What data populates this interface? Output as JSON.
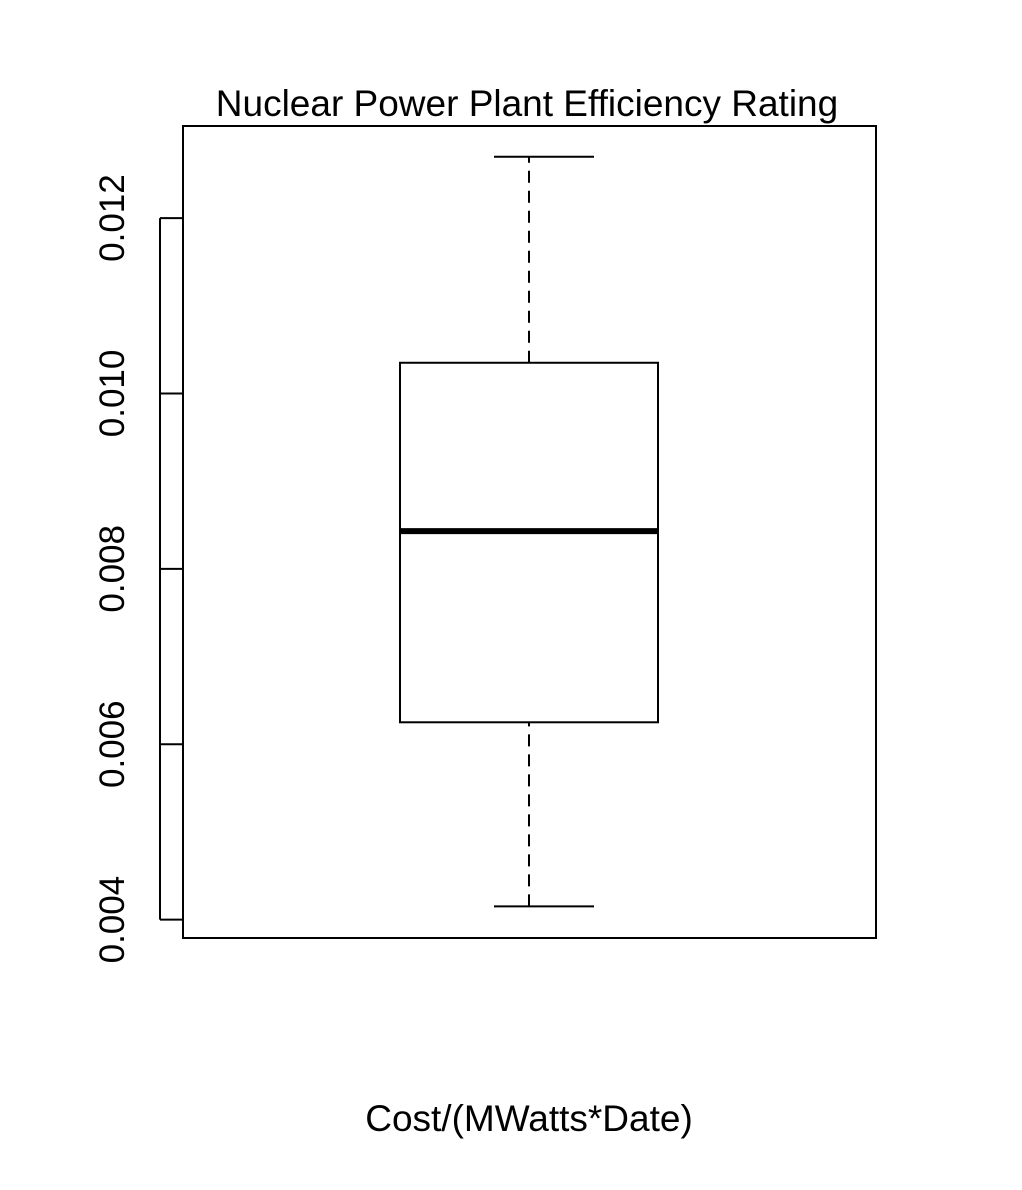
{
  "chart_data": {
    "type": "box",
    "title": "Nuclear Power Plant Efficiency Rating",
    "xlabel": "Cost/(MWatts*Date)",
    "ylabel": "",
    "ylim": [
      0.00379,
      0.01305
    ],
    "yticks": [
      0.004,
      0.006,
      0.008,
      0.01,
      0.012
    ],
    "ytick_labels": [
      "0.004",
      "0.006",
      "0.008",
      "0.010",
      "0.012"
    ],
    "box": {
      "whisker_low": 0.00415,
      "q1": 0.00625,
      "median": 0.00843,
      "q3": 0.01035,
      "whisker_high": 0.0127
    },
    "grid": false,
    "colors": {
      "stroke": "#000000",
      "background": "#ffffff"
    }
  }
}
